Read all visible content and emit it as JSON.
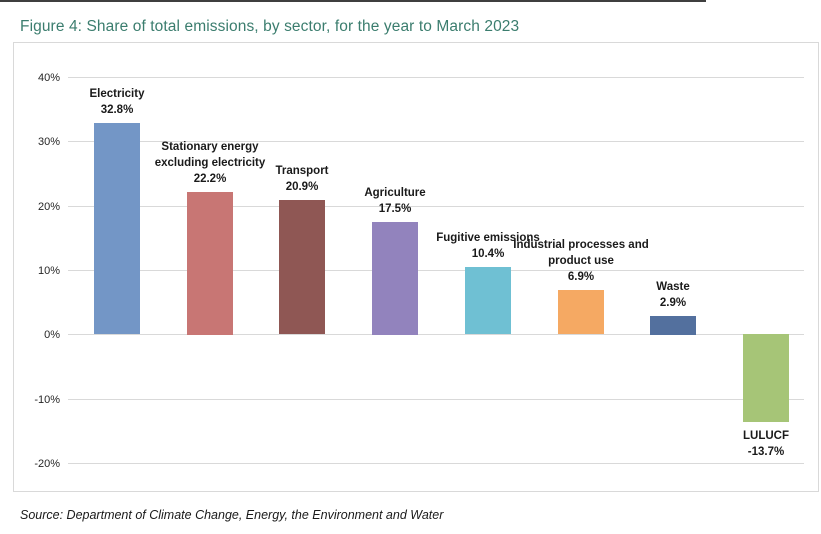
{
  "page": {
    "title": "Figure 4: Share of total emissions, by sector, for the year to March 2023",
    "title_color": "#3b7d6e",
    "source": "Source: Department of Climate Change, Energy, the Environment and Water"
  },
  "chart_data": {
    "type": "bar",
    "title": "Figure 4: Share of total emissions, by sector, for the year to March 2023",
    "categories": [
      "Electricity",
      "Stationary energy excluding electricity",
      "Transport",
      "Agriculture",
      "Fugitive emissions",
      "Industrial processes and product use",
      "Waste",
      "LULUCF"
    ],
    "values": [
      32.8,
      22.2,
      20.9,
      17.5,
      10.4,
      6.9,
      2.9,
      -13.7
    ],
    "value_labels": [
      "32.8%",
      "22.2%",
      "20.9%",
      "17.5%",
      "10.4%",
      "6.9%",
      "2.9%",
      "-13.7%"
    ],
    "label_lines": [
      [
        "Electricity"
      ],
      [
        "Stationary energy",
        "excluding electricity"
      ],
      [
        "Transport"
      ],
      [
        "Agriculture"
      ],
      [
        "Fugitive emissions"
      ],
      [
        "Industrial processes and",
        "product use"
      ],
      [
        "Waste"
      ],
      [
        "LULUCF"
      ]
    ],
    "bar_colors": [
      "#7396c6",
      "#c87674",
      "#8f5754",
      "#9283bd",
      "#6fc0d3",
      "#f5a963",
      "#53709e",
      "#a6c577"
    ],
    "ylim": [
      -20,
      40
    ],
    "ytick_values": [
      40,
      30,
      20,
      10,
      0,
      -10,
      -20
    ],
    "ytick_labels": [
      "40%",
      "30%",
      "20%",
      "10%",
      "0%",
      "-10%",
      "-20%"
    ],
    "unit": "%",
    "grid": true,
    "gridline_color": "#d9d9d9",
    "legend": "none",
    "source": "Source: Department of Climate Change, Energy, the Environment and Water"
  }
}
